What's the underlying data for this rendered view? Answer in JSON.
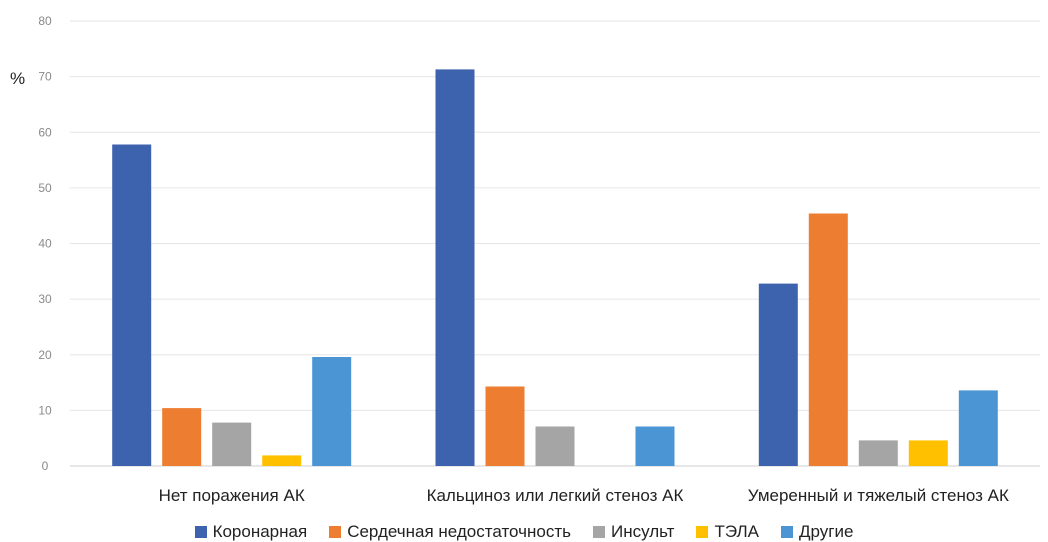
{
  "chart_data": {
    "type": "bar",
    "ylabel": "%",
    "ylim": [
      0,
      80
    ],
    "yticks": [
      0,
      10,
      20,
      30,
      40,
      50,
      60,
      70,
      80
    ],
    "grid": true,
    "legend_position": "bottom",
    "categories": [
      "Нет поражения АК",
      "Кальциноз или легкий стеноз АК",
      "Умеренный и тяжелый стеноз АК"
    ],
    "series": [
      {
        "name": "Коронарная",
        "color": "#3d62ae",
        "values": [
          57.8,
          71.3,
          32.8
        ]
      },
      {
        "name": "Сердечная недостаточность",
        "color": "#ed7d31",
        "values": [
          10.4,
          14.3,
          45.4
        ]
      },
      {
        "name": "Инсульт",
        "color": "#a5a5a5",
        "values": [
          7.8,
          7.1,
          4.6
        ]
      },
      {
        "name": "ТЭЛА",
        "color": "#ffc000",
        "values": [
          1.9,
          0,
          4.6
        ]
      },
      {
        "name": "Другие",
        "color": "#4c95d5",
        "values": [
          19.6,
          7.1,
          13.6
        ]
      }
    ]
  }
}
